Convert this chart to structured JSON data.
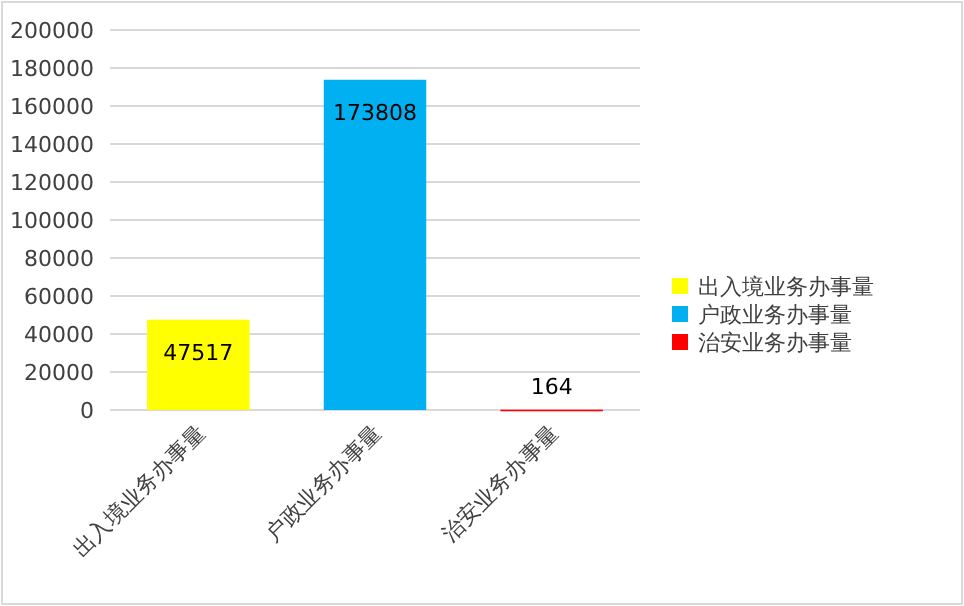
{
  "chart_data": {
    "type": "bar",
    "stacked": true,
    "categories": [
      "出入境业务办事量",
      "户政业务办事量",
      "治安业务办事量"
    ],
    "series": [
      {
        "name": "出入境业务办事量",
        "color": "#ffff00",
        "values": [
          47517,
          null,
          null
        ]
      },
      {
        "name": "户政业务办事量",
        "color": "#00b0f0",
        "values": [
          null,
          173808,
          null
        ]
      },
      {
        "name": "治安业务办事量",
        "color": "#ff0000",
        "values": [
          null,
          null,
          164
        ]
      }
    ],
    "ylim": [
      0,
      200000
    ],
    "yticks": [
      0,
      20000,
      40000,
      60000,
      80000,
      100000,
      120000,
      140000,
      160000,
      180000,
      200000
    ],
    "grid": "y",
    "legend": "right",
    "data_labels": true
  }
}
